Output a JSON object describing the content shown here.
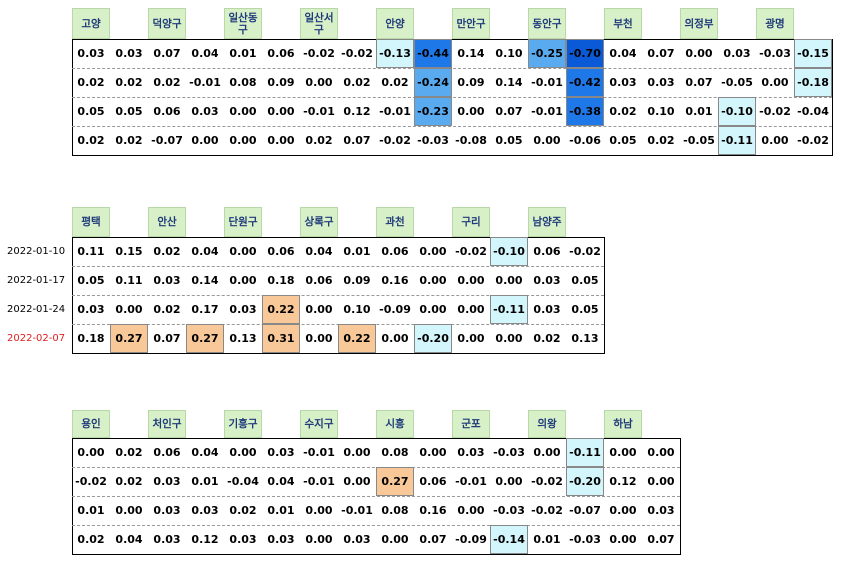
{
  "tables": [
    {
      "regions": [
        "고양",
        "덕양구",
        "일산동구",
        "일산서구",
        "안양",
        "만안구",
        "동안구",
        "부천",
        "의정부",
        "광명"
      ],
      "rows": [
        [
          "0.03",
          "0.03",
          "0.07",
          "0.04",
          "0.01",
          "0.06",
          "-0.02",
          "-0.02",
          "-0.13",
          "-0.44",
          "0.14",
          "0.10",
          "-0.25",
          "-0.70",
          "0.04",
          "0.07",
          "0.00",
          "0.03",
          "-0.03",
          "-0.15"
        ],
        [
          "0.02",
          "0.02",
          "0.02",
          "-0.01",
          "0.08",
          "0.09",
          "0.00",
          "0.02",
          "0.02",
          "-0.24",
          "0.09",
          "0.14",
          "-0.01",
          "-0.42",
          "0.03",
          "0.03",
          "0.07",
          "-0.05",
          "0.00",
          "-0.18"
        ],
        [
          "0.05",
          "0.05",
          "0.06",
          "0.03",
          "0.00",
          "0.00",
          "-0.01",
          "0.12",
          "-0.01",
          "-0.23",
          "0.00",
          "0.07",
          "-0.01",
          "-0.38",
          "0.02",
          "0.10",
          "0.01",
          "-0.10",
          "-0.02",
          "-0.04"
        ],
        [
          "0.02",
          "0.02",
          "-0.07",
          "0.00",
          "0.00",
          "0.00",
          "0.02",
          "0.07",
          "-0.02",
          "-0.03",
          "-0.08",
          "0.05",
          "0.00",
          "-0.06",
          "0.05",
          "0.02",
          "-0.05",
          "-0.11",
          "0.00",
          "-0.02"
        ]
      ]
    },
    {
      "regions": [
        "평택",
        "안산",
        "단원구",
        "상록구",
        "과천",
        "구리",
        "남양주"
      ],
      "dates": [
        "2022-01-10",
        "2022-01-17",
        "2022-01-24",
        "2022-02-07"
      ],
      "rows": [
        [
          "0.11",
          "0.15",
          "0.02",
          "0.04",
          "0.00",
          "0.06",
          "0.04",
          "0.01",
          "0.06",
          "0.00",
          "-0.02",
          "-0.10",
          "0.06",
          "-0.02"
        ],
        [
          "0.05",
          "0.11",
          "0.03",
          "0.14",
          "0.00",
          "0.18",
          "0.06",
          "0.09",
          "0.16",
          "0.00",
          "0.00",
          "0.00",
          "0.03",
          "0.05"
        ],
        [
          "0.03",
          "0.00",
          "0.02",
          "0.17",
          "0.03",
          "0.22",
          "0.00",
          "0.10",
          "-0.09",
          "0.00",
          "0.00",
          "-0.11",
          "0.03",
          "0.05"
        ],
        [
          "0.18",
          "0.27",
          "0.07",
          "0.27",
          "0.13",
          "0.31",
          "0.00",
          "0.22",
          "0.00",
          "-0.20",
          "0.00",
          "0.00",
          "0.02",
          "0.13"
        ]
      ]
    },
    {
      "regions": [
        "용인",
        "처인구",
        "기흥구",
        "수지구",
        "시흥",
        "군포",
        "의왕",
        "하남"
      ],
      "rows": [
        [
          "0.00",
          "0.02",
          "0.06",
          "0.04",
          "0.00",
          "0.03",
          "-0.01",
          "0.00",
          "0.08",
          "0.00",
          "0.03",
          "-0.03",
          "0.00",
          "-0.11",
          "0.00",
          "0.00"
        ],
        [
          "-0.02",
          "0.02",
          "0.03",
          "0.01",
          "-0.04",
          "0.04",
          "-0.01",
          "0.00",
          "0.27",
          "0.06",
          "-0.01",
          "0.00",
          "-0.02",
          "-0.20",
          "0.12",
          "0.00"
        ],
        [
          "0.01",
          "0.00",
          "0.03",
          "0.03",
          "0.02",
          "0.01",
          "0.00",
          "-0.01",
          "0.08",
          "0.16",
          "0.00",
          "-0.03",
          "-0.02",
          "-0.07",
          "0.00",
          "0.03"
        ],
        [
          "0.02",
          "0.04",
          "0.03",
          "0.12",
          "0.03",
          "0.03",
          "0.00",
          "0.03",
          "0.00",
          "0.07",
          "-0.09",
          "-0.14",
          "0.01",
          "-0.03",
          "0.00",
          "0.07"
        ]
      ]
    }
  ]
}
